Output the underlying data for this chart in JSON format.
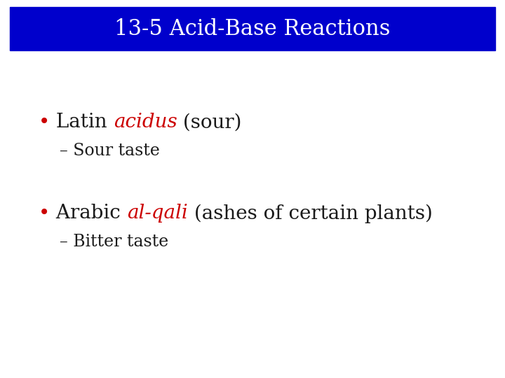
{
  "title": "13-5 Acid-Base Reactions",
  "title_bg_color": "#0000cc",
  "title_text_color": "#ffffff",
  "title_fontsize": 22,
  "bg_color": "#ffffff",
  "bullet1_italic_color": "#cc0000",
  "bullet1_text_color": "#1a1a1a",
  "sub1": "– Sour taste",
  "bullet2_italic_color": "#cc0000",
  "bullet2_text_color": "#1a1a1a",
  "sub2": "– Bitter taste",
  "bullet_fontsize": 20,
  "sub_fontsize": 17,
  "sub_color": "#1a1a1a",
  "bullet_color": "#cc0000"
}
